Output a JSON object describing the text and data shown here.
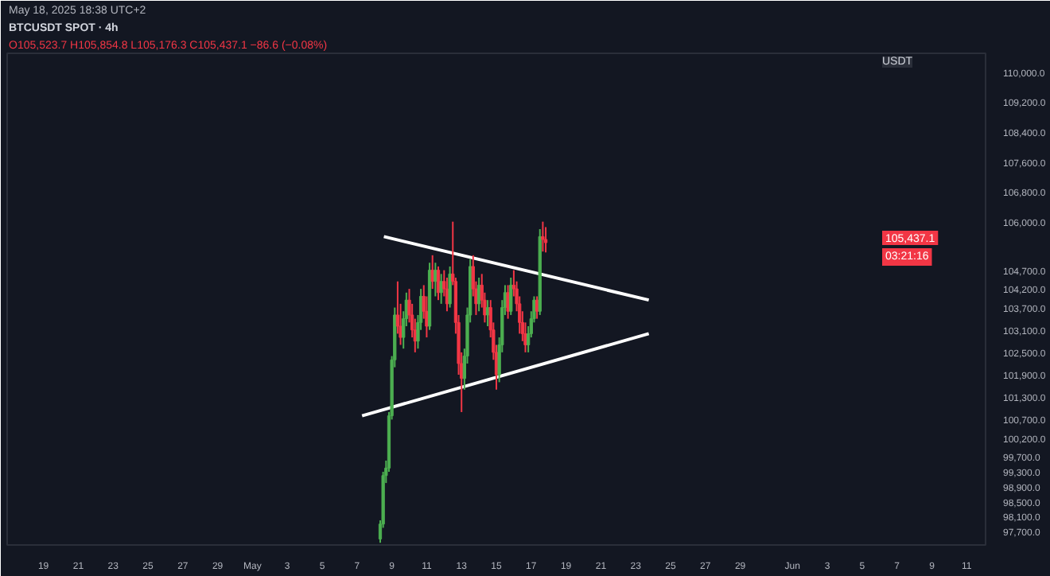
{
  "chart_data": {
    "type": "candlestick",
    "title": "BTCUSDT SPOT · 4h",
    "subtitle": "O105,523.7 H105,854.8 L105,176.3 C105,437.1 −86.6 (−0.08%)",
    "ylabel": "USDT",
    "annotations": [
      "May 18, 2025 18:38 UTC+2",
      "105,437.1",
      "03:21:16"
    ],
    "x": [
      "2025-05-08T08:00",
      "2025-05-08T12:00",
      "2025-05-08T16:00",
      "2025-05-08T20:00",
      "2025-05-09T00:00",
      "2025-05-09T04:00",
      "2025-05-09T08:00",
      "2025-05-09T12:00",
      "2025-05-09T16:00",
      "2025-05-09T20:00",
      "2025-05-10T00:00",
      "2025-05-10T04:00",
      "2025-05-10T08:00",
      "2025-05-10T12:00",
      "2025-05-10T16:00",
      "2025-05-10T20:00",
      "2025-05-11T00:00",
      "2025-05-11T04:00",
      "2025-05-11T08:00",
      "2025-05-11T12:00",
      "2025-05-11T16:00",
      "2025-05-11T20:00",
      "2025-05-12T00:00",
      "2025-05-12T04:00",
      "2025-05-12T08:00",
      "2025-05-12T12:00",
      "2025-05-12T16:00",
      "2025-05-12T20:00",
      "2025-05-13T00:00",
      "2025-05-13T04:00",
      "2025-05-13T08:00",
      "2025-05-13T12:00",
      "2025-05-13T16:00",
      "2025-05-13T20:00",
      "2025-05-14T00:00",
      "2025-05-14T04:00",
      "2025-05-14T08:00",
      "2025-05-14T12:00",
      "2025-05-14T16:00",
      "2025-05-14T20:00",
      "2025-05-15T00:00",
      "2025-05-15T04:00",
      "2025-05-15T08:00",
      "2025-05-15T12:00",
      "2025-05-15T16:00",
      "2025-05-15T20:00",
      "2025-05-16T00:00",
      "2025-05-16T04:00",
      "2025-05-16T08:00",
      "2025-05-16T12:00",
      "2025-05-16T16:00",
      "2025-05-16T20:00",
      "2025-05-17T00:00",
      "2025-05-17T04:00",
      "2025-05-17T08:00",
      "2025-05-17T12:00",
      "2025-05-17T16:00",
      "2025-05-17T20:00"
    ],
    "ohlc": [
      [
        97500,
        98000,
        97400,
        97900
      ],
      [
        97900,
        99300,
        97800,
        99200
      ],
      [
        99200,
        99600,
        99000,
        99400
      ],
      [
        99400,
        100900,
        99300,
        100800
      ],
      [
        100800,
        102400,
        100700,
        102300
      ],
      [
        102300,
        103700,
        102100,
        103500
      ],
      [
        103500,
        104400,
        103000,
        103200
      ],
      [
        103200,
        103800,
        102700,
        102900
      ],
      [
        102900,
        103600,
        102600,
        103400
      ],
      [
        103400,
        104100,
        103200,
        103900
      ],
      [
        103900,
        104200,
        103300,
        103500
      ],
      [
        103500,
        103800,
        102900,
        103100
      ],
      [
        103100,
        103400,
        102500,
        102800
      ],
      [
        102800,
        103500,
        102600,
        103300
      ],
      [
        103300,
        104200,
        103100,
        104000
      ],
      [
        104000,
        104300,
        103400,
        103600
      ],
      [
        103600,
        104000,
        102900,
        103200
      ],
      [
        103200,
        104900,
        103100,
        104700
      ],
      [
        104700,
        105100,
        104200,
        104400
      ],
      [
        104400,
        104900,
        104000,
        104700
      ],
      [
        104700,
        104800,
        103900,
        104100
      ],
      [
        104100,
        104600,
        103800,
        104400
      ],
      [
        104400,
        104700,
        104000,
        104200
      ],
      [
        104200,
        104500,
        103600,
        103800
      ],
      [
        103800,
        104800,
        103700,
        104600
      ],
      [
        104600,
        106000,
        104300,
        104400
      ],
      [
        104400,
        104500,
        103000,
        103300
      ],
      [
        103300,
        103500,
        101900,
        102200
      ],
      [
        102200,
        102500,
        100900,
        101800
      ],
      [
        101800,
        102600,
        101500,
        102400
      ],
      [
        102400,
        103700,
        102200,
        103500
      ],
      [
        103500,
        105000,
        103300,
        104800
      ],
      [
        104800,
        105100,
        104000,
        104200
      ],
      [
        104200,
        104400,
        103500,
        103800
      ],
      [
        103800,
        104500,
        103600,
        104300
      ],
      [
        104300,
        104600,
        103700,
        103900
      ],
      [
        103900,
        104100,
        103300,
        103500
      ],
      [
        103500,
        103900,
        103200,
        103700
      ],
      [
        103700,
        103900,
        102900,
        103100
      ],
      [
        103100,
        103300,
        102300,
        102500
      ],
      [
        102500,
        102700,
        101500,
        101900
      ],
      [
        101900,
        102900,
        101700,
        102700
      ],
      [
        102700,
        103900,
        102500,
        103700
      ],
      [
        103700,
        104300,
        103500,
        104100
      ],
      [
        104100,
        104300,
        103400,
        103600
      ],
      [
        103600,
        104500,
        103500,
        104300
      ],
      [
        104300,
        104700,
        104000,
        104200
      ],
      [
        104200,
        104400,
        103600,
        103800
      ],
      [
        103800,
        104000,
        103000,
        103300
      ],
      [
        103300,
        103600,
        102800,
        103000
      ],
      [
        103000,
        103300,
        102500,
        102700
      ],
      [
        102700,
        103200,
        102500,
        103000
      ],
      [
        103000,
        103600,
        102900,
        103400
      ],
      [
        103400,
        104000,
        103300,
        103900
      ],
      [
        103900,
        104000,
        103400,
        103600
      ],
      [
        103600,
        105800,
        103500,
        105600
      ],
      [
        105600,
        106000,
        105200,
        105523.7
      ],
      [
        105523.7,
        105854.8,
        105176.3,
        105437.1
      ]
    ],
    "series": [
      {
        "type": "line",
        "color": "#ffffff",
        "x": [
          "2025-05-08T13:00",
          "2025-05-23T18:00"
        ],
        "values": [
          105600,
          103900
        ]
      },
      {
        "type": "line",
        "color": "#ffffff",
        "x": [
          "2025-05-07T07:00",
          "2025-05-23T18:00"
        ],
        "values": [
          100800,
          103000
        ]
      }
    ],
    "xlim": [
      "2025-04-16T22:00",
      "2025-06-12T02:00"
    ],
    "xticks": [
      {
        "value": "2025-04-19",
        "label": "19"
      },
      {
        "value": "2025-04-21",
        "label": "21"
      },
      {
        "value": "2025-04-23",
        "label": "23"
      },
      {
        "value": "2025-04-25",
        "label": "25"
      },
      {
        "value": "2025-04-27",
        "label": "27"
      },
      {
        "value": "2025-04-29",
        "label": "29"
      },
      {
        "value": "2025-05-01",
        "label": "May"
      },
      {
        "value": "2025-05-03",
        "label": "3"
      },
      {
        "value": "2025-05-05",
        "label": "5"
      },
      {
        "value": "2025-05-07",
        "label": "7"
      },
      {
        "value": "2025-05-09",
        "label": "9"
      },
      {
        "value": "2025-05-11",
        "label": "11"
      },
      {
        "value": "2025-05-13",
        "label": "13"
      },
      {
        "value": "2025-05-15",
        "label": "15"
      },
      {
        "value": "2025-05-17",
        "label": "17"
      },
      {
        "value": "2025-05-19",
        "label": "19"
      },
      {
        "value": "2025-05-21",
        "label": "21"
      },
      {
        "value": "2025-05-23",
        "label": "23"
      },
      {
        "value": "2025-05-25",
        "label": "25"
      },
      {
        "value": "2025-05-27",
        "label": "27"
      },
      {
        "value": "2025-05-29",
        "label": "29"
      },
      {
        "value": "2025-06-01",
        "label": "Jun"
      },
      {
        "value": "2025-06-03",
        "label": "3"
      },
      {
        "value": "2025-06-05",
        "label": "5"
      },
      {
        "value": "2025-06-07",
        "label": "7"
      },
      {
        "value": "2025-06-09",
        "label": "9"
      },
      {
        "value": "2025-06-11",
        "label": "11"
      }
    ],
    "ylim": [
      97340,
      110510
    ],
    "yticks": [
      {
        "value": 110000,
        "label": "110,000.0"
      },
      {
        "value": 109200,
        "label": "109,200.0"
      },
      {
        "value": 108400,
        "label": "108,400.0"
      },
      {
        "value": 107600,
        "label": "107,600.0"
      },
      {
        "value": 106800,
        "label": "106,800.0"
      },
      {
        "value": 106000,
        "label": "106,000.0"
      },
      {
        "value": 104700,
        "label": "104,700.0"
      },
      {
        "value": 104200,
        "label": "104,200.0"
      },
      {
        "value": 103700,
        "label": "103,700.0"
      },
      {
        "value": 103100,
        "label": "103,100.0"
      },
      {
        "value": 102500,
        "label": "102,500.0"
      },
      {
        "value": 101900,
        "label": "101,900.0"
      },
      {
        "value": 101300,
        "label": "101,300.0"
      },
      {
        "value": 100700,
        "label": "100,700.0"
      },
      {
        "value": 100200,
        "label": "100,200.0"
      },
      {
        "value": 99700,
        "label": "99,700.0"
      },
      {
        "value": 99300,
        "label": "99,300.0"
      },
      {
        "value": 98900,
        "label": "98,900.0"
      },
      {
        "value": 98500,
        "label": "98,500.0"
      },
      {
        "value": 98100,
        "label": "98,100.0"
      },
      {
        "value": 97700,
        "label": "97,700.0"
      }
    ],
    "grid": false
  }
}
